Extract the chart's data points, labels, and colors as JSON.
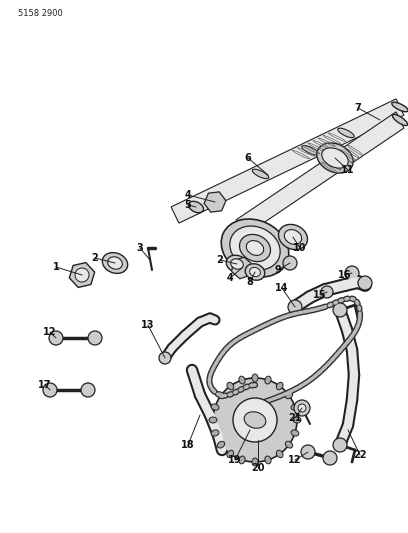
{
  "part_number": "5158 2900",
  "background_color": "#ffffff",
  "line_color": "#222222",
  "fig_width": 4.08,
  "fig_height": 5.33,
  "dpi": 100,
  "shaft_color": "#222222",
  "fill_light": "#e8e8e8",
  "fill_mid": "#cccccc",
  "fill_dark": "#aaaaaa"
}
